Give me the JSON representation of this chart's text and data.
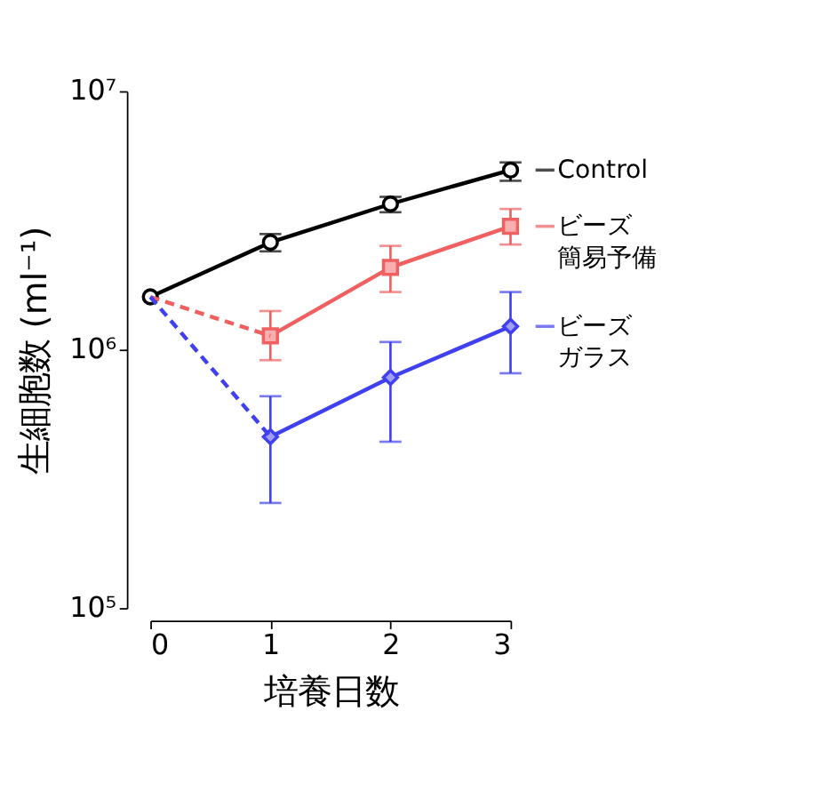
{
  "chart_data": {
    "type": "line",
    "xlabel": "培養日数",
    "ylabel": "生細胞数 (ml⁻¹)",
    "x": [
      0,
      1,
      2,
      3
    ],
    "xlim": [
      0,
      3
    ],
    "xticks": [
      0,
      1,
      2,
      3
    ],
    "log": true,
    "ylim": [
      100000,
      10000000
    ],
    "yticks": [
      {
        "value": 100000,
        "label": "10⁵"
      },
      {
        "value": 1000000,
        "label": "10⁶"
      },
      {
        "value": 10000000,
        "label": "10⁷"
      }
    ],
    "grid": false,
    "legend": "right",
    "series": [
      {
        "name": "Control",
        "color": "#000000",
        "marker": "circle",
        "line_style": "solid",
        "values": [
          1600000,
          2600000,
          3660000,
          4950000
        ],
        "errors": [
          null,
          [
            2400000,
            2800000
          ],
          [
            3400000,
            3900000
          ],
          [
            4500000,
            5300000
          ]
        ]
      },
      {
        "name": "ビーズ簡易予備",
        "color": "#f06060",
        "marker": "square",
        "line_style": "solid",
        "values": [
          null,
          1130000,
          2080000,
          3000000
        ],
        "errors": [
          null,
          [
            910000,
            1410000
          ],
          [
            1670000,
            2520000
          ],
          [
            2550000,
            3500000
          ]
        ]
      },
      {
        "color": "#f06060",
        "marker": "none",
        "line_style": "dashed",
        "values": [
          1600000,
          1130000,
          null,
          null
        ]
      },
      {
        "name": "ビーズガラス",
        "color": "#4040f0",
        "marker": "diamond",
        "line_style": "solid",
        "values": [
          null,
          460000,
          780000,
          1230000
        ],
        "errors": [
          null,
          [
            255000,
            660000
          ],
          [
            440000,
            1070000
          ],
          [
            810000,
            1670000
          ]
        ]
      },
      {
        "color": "#4040f0",
        "marker": "none",
        "line_style": "dashed",
        "values": [
          1600000,
          460000,
          null,
          null
        ]
      }
    ]
  }
}
